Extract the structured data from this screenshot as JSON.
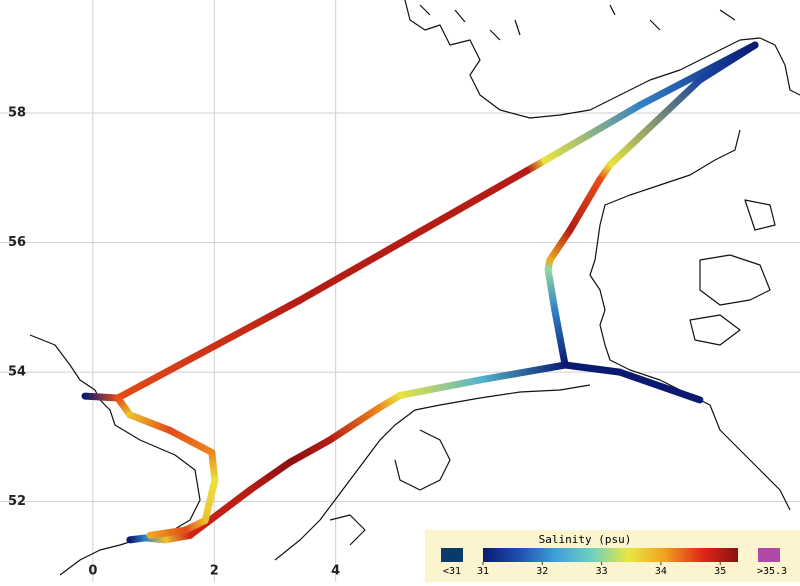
{
  "map": {
    "type": "track",
    "xlim": [
      -1.53,
      11.65
    ],
    "ylim": [
      50.76,
      59.745
    ],
    "xticks": [
      0,
      2,
      4
    ],
    "yticks": [
      52,
      54,
      56,
      58
    ],
    "grid": true,
    "tracks": [
      {
        "lon": [
          -0.13,
          0.41,
          3.41,
          7.17,
          7.45,
          9.01,
          10.91
        ],
        "lat": [
          53.63,
          53.6,
          55.11,
          57.12,
          57.27,
          58.12,
          59.05
        ],
        "salinity": [
          31,
          34.5,
          35,
          35,
          33.5,
          32,
          31
        ]
      },
      {
        "lon": [
          10.91,
          10.0,
          8.52,
          8.35,
          7.86,
          7.53,
          7.5,
          7.61,
          7.78,
          8.68,
          10.0
        ],
        "lat": [
          59.05,
          58.51,
          57.2,
          56.97,
          56.19,
          55.73,
          55.58,
          54.96,
          54.11,
          54.0,
          53.57
        ],
        "salinity": [
          31,
          31.5,
          33.5,
          34.5,
          35,
          34,
          33,
          32,
          31,
          31,
          31
        ]
      },
      {
        "lon": [
          7.78,
          6.38,
          5.06,
          4.7,
          3.9,
          3.25,
          2.59,
          1.6,
          1.19,
          0.86,
          0.61
        ],
        "lat": [
          54.11,
          53.88,
          53.64,
          53.44,
          52.95,
          52.61,
          52.18,
          51.48,
          51.41,
          51.44,
          51.41
        ],
        "salinity": [
          31,
          32.5,
          33.5,
          34.2,
          35,
          35.3,
          35,
          34.8,
          33.8,
          32,
          31
        ]
      },
      {
        "lon": [
          0.41,
          0.61,
          1.27,
          1.96,
          2.01,
          1.85,
          1.52,
          0.94
        ],
        "lat": [
          53.6,
          53.34,
          53.1,
          52.76,
          52.33,
          51.71,
          51.56,
          51.48
        ],
        "salinity": [
          34.5,
          33.8,
          34.5,
          34.2,
          33.5,
          33.8,
          34.5,
          34
        ]
      }
    ],
    "legend": {
      "title": "Salinity (psu)",
      "range": [
        31,
        35.3
      ],
      "ticks": [
        31,
        32,
        33,
        34,
        35
      ],
      "colormap": [
        "#0a1a70",
        "#1f4fb0",
        "#3fa0d8",
        "#70d0c0",
        "#e8e840",
        "#f0a020",
        "#e02818",
        "#8c1010"
      ],
      "low_label": "<31",
      "low_color": "#0b3a6a",
      "high_label": ">35.3",
      "high_color": "#b04aa8"
    }
  }
}
